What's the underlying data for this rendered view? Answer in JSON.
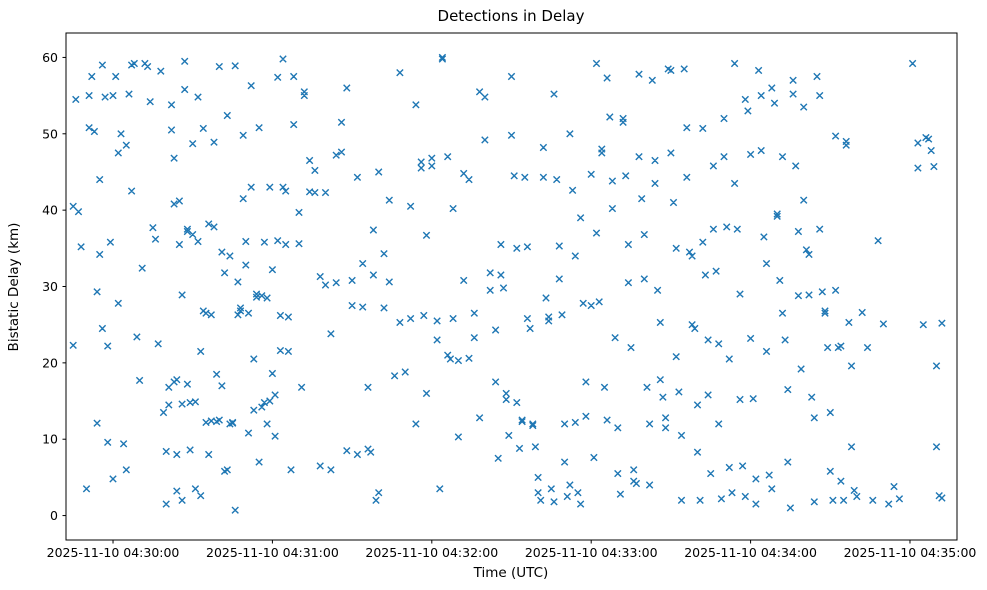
{
  "chart_data": {
    "type": "scatter",
    "title": "Detections in Delay",
    "xlabel": "Time (UTC)",
    "ylabel": "Bistatic Delay (km)",
    "marker": "x",
    "marker_color": "#1f77b4",
    "grid": false,
    "legend": "none",
    "x_unit": "seconds after 2025-11-10 04:30:00 UTC",
    "x_range": [
      -17.7,
      317.7
    ],
    "y_range": [
      -3.2,
      63.2
    ],
    "x_ticks": [
      {
        "value": 0,
        "label": "2025-11-10 04:30:00"
      },
      {
        "value": 60,
        "label": "2025-11-10 04:31:00"
      },
      {
        "value": 120,
        "label": "2025-11-10 04:32:00"
      },
      {
        "value": 180,
        "label": "2025-11-10 04:33:00"
      },
      {
        "value": 240,
        "label": "2025-11-10 04:34:00"
      },
      {
        "value": 300,
        "label": "2025-11-10 04:35:00"
      }
    ],
    "y_ticks": [
      0,
      10,
      20,
      30,
      40,
      50,
      60
    ],
    "points": [
      [
        -15,
        40.5
      ],
      [
        -15,
        22.3
      ],
      [
        -14,
        54.5
      ],
      [
        -13,
        39.8
      ],
      [
        -12,
        35.2
      ],
      [
        -10,
        3.5
      ],
      [
        -9,
        50.8
      ],
      [
        -9,
        55.0
      ],
      [
        -8,
        57.5
      ],
      [
        -7,
        50.3
      ],
      [
        -6,
        29.3
      ],
      [
        -6,
        12.1
      ],
      [
        -5,
        44.0
      ],
      [
        -5,
        34.2
      ],
      [
        -4,
        24.5
      ],
      [
        -4,
        59.0
      ],
      [
        -3,
        54.8
      ],
      [
        -2,
        22.2
      ],
      [
        -2,
        9.6
      ],
      [
        -1,
        35.8
      ],
      [
        0,
        55.0
      ],
      [
        0,
        4.8
      ],
      [
        1,
        57.5
      ],
      [
        2,
        47.5
      ],
      [
        2,
        27.8
      ],
      [
        3,
        50.0
      ],
      [
        4,
        9.4
      ],
      [
        5,
        48.5
      ],
      [
        5,
        6.0
      ],
      [
        6,
        55.2
      ],
      [
        7,
        42.5
      ],
      [
        7,
        59.0
      ],
      [
        8,
        59.2
      ],
      [
        9,
        23.4
      ],
      [
        10,
        17.7
      ],
      [
        11,
        32.4
      ],
      [
        12,
        59.2
      ],
      [
        13,
        58.8
      ],
      [
        14,
        54.2
      ],
      [
        15,
        37.7
      ],
      [
        16,
        36.2
      ],
      [
        17,
        22.5
      ],
      [
        18,
        58.2
      ],
      [
        19,
        13.5
      ],
      [
        20,
        8.4
      ],
      [
        20,
        1.5
      ],
      [
        21,
        16.8
      ],
      [
        21,
        14.5
      ],
      [
        22,
        53.8
      ],
      [
        22,
        50.5
      ],
      [
        23,
        40.8
      ],
      [
        23,
        46.8
      ],
      [
        23,
        17.5
      ],
      [
        24,
        17.8
      ],
      [
        24,
        8.0
      ],
      [
        24,
        3.2
      ],
      [
        25,
        41.2
      ],
      [
        25,
        35.5
      ],
      [
        26,
        28.9
      ],
      [
        26,
        14.6
      ],
      [
        26,
        2.0
      ],
      [
        27,
        59.5
      ],
      [
        27,
        55.8
      ],
      [
        28,
        37.5
      ],
      [
        28,
        37.2
      ],
      [
        28,
        17.2
      ],
      [
        29,
        14.8
      ],
      [
        29,
        8.6
      ],
      [
        30,
        48.7
      ],
      [
        30,
        36.8
      ],
      [
        31,
        14.9
      ],
      [
        31,
        3.5
      ],
      [
        32,
        54.8
      ],
      [
        32,
        35.9
      ],
      [
        33,
        21.5
      ],
      [
        33,
        2.6
      ],
      [
        34,
        50.7
      ],
      [
        34,
        26.8
      ],
      [
        35,
        26.5
      ],
      [
        35,
        12.2
      ],
      [
        36,
        8.0
      ],
      [
        36,
        38.2
      ],
      [
        37,
        26.3
      ],
      [
        37,
        12.4
      ],
      [
        38,
        48.9
      ],
      [
        38,
        37.8
      ],
      [
        39,
        18.5
      ],
      [
        39,
        12.3
      ],
      [
        40,
        12.5
      ],
      [
        40,
        58.8
      ],
      [
        41,
        34.5
      ],
      [
        41,
        17.0
      ],
      [
        42,
        31.8
      ],
      [
        42,
        5.8
      ],
      [
        43,
        6.0
      ],
      [
        43,
        52.4
      ],
      [
        44,
        34.0
      ],
      [
        44,
        12.0
      ],
      [
        45,
        12.1
      ],
      [
        45,
        12.2
      ],
      [
        46,
        0.7
      ],
      [
        46,
        58.9
      ],
      [
        47,
        30.6
      ],
      [
        47,
        26.3
      ],
      [
        48,
        26.8
      ],
      [
        48,
        27.2
      ],
      [
        49,
        49.8
      ],
      [
        49,
        41.5
      ],
      [
        50,
        35.9
      ],
      [
        50,
        32.8
      ],
      [
        51,
        26.5
      ],
      [
        51,
        10.8
      ],
      [
        52,
        56.3
      ],
      [
        52,
        43.0
      ],
      [
        53,
        20.5
      ],
      [
        53,
        13.8
      ],
      [
        54,
        29.0
      ],
      [
        54,
        28.6
      ],
      [
        55,
        7.0
      ],
      [
        55,
        50.8
      ],
      [
        56,
        28.8
      ],
      [
        56,
        14.2
      ],
      [
        57,
        14.8
      ],
      [
        57,
        35.8
      ],
      [
        58,
        28.5
      ],
      [
        58,
        12.0
      ],
      [
        59,
        15.0
      ],
      [
        59,
        43.0
      ],
      [
        60,
        32.2
      ],
      [
        60,
        18.6
      ],
      [
        61,
        15.8
      ],
      [
        61,
        10.4
      ],
      [
        62,
        57.4
      ],
      [
        62,
        36.0
      ],
      [
        63,
        26.2
      ],
      [
        63,
        21.6
      ],
      [
        64,
        59.8
      ],
      [
        64,
        43.0
      ],
      [
        65,
        42.5
      ],
      [
        65,
        35.5
      ],
      [
        66,
        26.0
      ],
      [
        66,
        21.5
      ],
      [
        67,
        6.0
      ],
      [
        68,
        57.5
      ],
      [
        68,
        51.2
      ],
      [
        70,
        39.7
      ],
      [
        70,
        35.6
      ],
      [
        71,
        16.8
      ],
      [
        72,
        55.5
      ],
      [
        72,
        55.0
      ],
      [
        74,
        46.5
      ],
      [
        74,
        42.4
      ],
      [
        76,
        45.2
      ],
      [
        76,
        42.3
      ],
      [
        78,
        31.3
      ],
      [
        78,
        6.5
      ],
      [
        80,
        42.3
      ],
      [
        80,
        30.2
      ],
      [
        82,
        23.8
      ],
      [
        82,
        6.0
      ],
      [
        84,
        47.2
      ],
      [
        84,
        30.5
      ],
      [
        86,
        47.6
      ],
      [
        86,
        51.5
      ],
      [
        88,
        8.5
      ],
      [
        88,
        56.0
      ],
      [
        90,
        30.8
      ],
      [
        90,
        27.5
      ],
      [
        92,
        8.0
      ],
      [
        92,
        44.3
      ],
      [
        94,
        33.0
      ],
      [
        94,
        27.3
      ],
      [
        96,
        16.8
      ],
      [
        96,
        8.7
      ],
      [
        97,
        8.3
      ],
      [
        98,
        37.4
      ],
      [
        98,
        31.5
      ],
      [
        99,
        2.0
      ],
      [
        100,
        3.0
      ],
      [
        100,
        45.0
      ],
      [
        102,
        34.3
      ],
      [
        102,
        27.2
      ],
      [
        104,
        41.3
      ],
      [
        104,
        30.6
      ],
      [
        106,
        18.3
      ],
      [
        108,
        58.0
      ],
      [
        108,
        25.3
      ],
      [
        110,
        18.8
      ],
      [
        112,
        40.5
      ],
      [
        112,
        25.8
      ],
      [
        114,
        12.0
      ],
      [
        114,
        53.8
      ],
      [
        116,
        46.3
      ],
      [
        116,
        45.5
      ],
      [
        117,
        26.2
      ],
      [
        118,
        36.7
      ],
      [
        118,
        16.0
      ],
      [
        120,
        46.8
      ],
      [
        120,
        45.8
      ],
      [
        122,
        25.5
      ],
      [
        122,
        23.0
      ],
      [
        123,
        3.5
      ],
      [
        124,
        60.0
      ],
      [
        124,
        59.8
      ],
      [
        126,
        47.0
      ],
      [
        126,
        21.0
      ],
      [
        127,
        20.5
      ],
      [
        128,
        40.2
      ],
      [
        128,
        25.8
      ],
      [
        130,
        20.3
      ],
      [
        130,
        10.3
      ],
      [
        132,
        44.8
      ],
      [
        132,
        30.8
      ],
      [
        134,
        20.6
      ],
      [
        134,
        44.0
      ],
      [
        136,
        26.5
      ],
      [
        136,
        23.3
      ],
      [
        138,
        12.8
      ],
      [
        138,
        55.5
      ],
      [
        140,
        54.8
      ],
      [
        140,
        49.2
      ],
      [
        142,
        31.8
      ],
      [
        142,
        29.5
      ],
      [
        144,
        24.3
      ],
      [
        144,
        17.5
      ],
      [
        145,
        7.5
      ],
      [
        146,
        35.5
      ],
      [
        146,
        31.5
      ],
      [
        147,
        29.8
      ],
      [
        148,
        16.0
      ],
      [
        148,
        15.2
      ],
      [
        149,
        10.5
      ],
      [
        150,
        57.5
      ],
      [
        150,
        49.8
      ],
      [
        151,
        44.5
      ],
      [
        152,
        35.0
      ],
      [
        152,
        14.8
      ],
      [
        153,
        8.8
      ],
      [
        154,
        12.5
      ],
      [
        154,
        12.3
      ],
      [
        155,
        44.3
      ],
      [
        156,
        35.2
      ],
      [
        156,
        25.8
      ],
      [
        157,
        24.5
      ],
      [
        158,
        12.0
      ],
      [
        158,
        11.8
      ],
      [
        159,
        9.0
      ],
      [
        160,
        5.0
      ],
      [
        160,
        3.0
      ],
      [
        161,
        2.0
      ],
      [
        162,
        48.2
      ],
      [
        162,
        44.3
      ],
      [
        163,
        28.5
      ],
      [
        164,
        26.0
      ],
      [
        164,
        25.5
      ],
      [
        165,
        3.5
      ],
      [
        166,
        1.8
      ],
      [
        166,
        55.2
      ],
      [
        167,
        44.0
      ],
      [
        168,
        35.3
      ],
      [
        168,
        31.0
      ],
      [
        169,
        26.3
      ],
      [
        170,
        12.0
      ],
      [
        170,
        7.0
      ],
      [
        171,
        2.5
      ],
      [
        172,
        4.0
      ],
      [
        172,
        50.0
      ],
      [
        173,
        42.6
      ],
      [
        174,
        34.0
      ],
      [
        174,
        12.2
      ],
      [
        175,
        3.0
      ],
      [
        176,
        1.5
      ],
      [
        176,
        39.0
      ],
      [
        177,
        27.8
      ],
      [
        178,
        17.5
      ],
      [
        178,
        13.0
      ],
      [
        180,
        44.7
      ],
      [
        180,
        27.5
      ],
      [
        181,
        7.6
      ],
      [
        182,
        59.2
      ],
      [
        182,
        37.0
      ],
      [
        183,
        28.0
      ],
      [
        184,
        48.0
      ],
      [
        184,
        47.5
      ],
      [
        185,
        16.8
      ],
      [
        186,
        12.5
      ],
      [
        186,
        57.3
      ],
      [
        187,
        52.2
      ],
      [
        188,
        43.8
      ],
      [
        188,
        40.2
      ],
      [
        189,
        23.3
      ],
      [
        190,
        11.5
      ],
      [
        190,
        5.5
      ],
      [
        191,
        2.8
      ],
      [
        192,
        52.0
      ],
      [
        192,
        51.5
      ],
      [
        193,
        44.5
      ],
      [
        194,
        35.5
      ],
      [
        194,
        30.5
      ],
      [
        195,
        22.0
      ],
      [
        196,
        6.0
      ],
      [
        196,
        4.5
      ],
      [
        197,
        4.2
      ],
      [
        198,
        57.8
      ],
      [
        198,
        47.0
      ],
      [
        199,
        41.5
      ],
      [
        200,
        36.8
      ],
      [
        200,
        31.0
      ],
      [
        201,
        16.8
      ],
      [
        202,
        12.0
      ],
      [
        202,
        4.0
      ],
      [
        203,
        57.0
      ],
      [
        204,
        46.5
      ],
      [
        204,
        43.5
      ],
      [
        205,
        29.5
      ],
      [
        206,
        25.3
      ],
      [
        206,
        17.8
      ],
      [
        207,
        15.5
      ],
      [
        208,
        12.8
      ],
      [
        208,
        11.5
      ],
      [
        209,
        58.5
      ],
      [
        210,
        58.3
      ],
      [
        210,
        47.5
      ],
      [
        211,
        41.0
      ],
      [
        212,
        35.0
      ],
      [
        212,
        20.8
      ],
      [
        213,
        16.2
      ],
      [
        214,
        10.5
      ],
      [
        214,
        2.0
      ],
      [
        215,
        58.5
      ],
      [
        216,
        50.8
      ],
      [
        216,
        44.3
      ],
      [
        217,
        34.5
      ],
      [
        218,
        34.0
      ],
      [
        218,
        25.0
      ],
      [
        219,
        24.5
      ],
      [
        220,
        14.5
      ],
      [
        220,
        8.3
      ],
      [
        221,
        2.0
      ],
      [
        222,
        50.7
      ],
      [
        222,
        35.8
      ],
      [
        223,
        31.5
      ],
      [
        224,
        23.0
      ],
      [
        224,
        15.8
      ],
      [
        225,
        5.5
      ],
      [
        226,
        45.8
      ],
      [
        226,
        37.5
      ],
      [
        227,
        32.0
      ],
      [
        228,
        22.5
      ],
      [
        228,
        12.0
      ],
      [
        229,
        2.2
      ],
      [
        230,
        52.0
      ],
      [
        230,
        47.0
      ],
      [
        231,
        37.8
      ],
      [
        232,
        20.5
      ],
      [
        232,
        6.3
      ],
      [
        233,
        3.0
      ],
      [
        234,
        59.2
      ],
      [
        234,
        43.5
      ],
      [
        235,
        37.5
      ],
      [
        236,
        29.0
      ],
      [
        236,
        15.2
      ],
      [
        237,
        6.5
      ],
      [
        238,
        2.5
      ],
      [
        238,
        54.5
      ],
      [
        239,
        53.0
      ],
      [
        240,
        47.3
      ],
      [
        240,
        23.2
      ],
      [
        241,
        15.3
      ],
      [
        242,
        4.8
      ],
      [
        242,
        1.5
      ],
      [
        243,
        58.3
      ],
      [
        244,
        55.0
      ],
      [
        244,
        47.8
      ],
      [
        245,
        36.5
      ],
      [
        246,
        33.0
      ],
      [
        246,
        21.5
      ],
      [
        247,
        5.3
      ],
      [
        248,
        3.5
      ],
      [
        248,
        56.0
      ],
      [
        249,
        54.0
      ],
      [
        250,
        39.5
      ],
      [
        250,
        39.2
      ],
      [
        251,
        30.8
      ],
      [
        252,
        26.5
      ],
      [
        252,
        47.0
      ],
      [
        253,
        23.0
      ],
      [
        254,
        16.5
      ],
      [
        254,
        7.0
      ],
      [
        255,
        1.0
      ],
      [
        256,
        57.0
      ],
      [
        256,
        55.2
      ],
      [
        257,
        45.8
      ],
      [
        258,
        37.2
      ],
      [
        258,
        28.8
      ],
      [
        259,
        19.2
      ],
      [
        260,
        53.5
      ],
      [
        260,
        41.3
      ],
      [
        261,
        34.8
      ],
      [
        262,
        34.2
      ],
      [
        262,
        28.9
      ],
      [
        263,
        15.5
      ],
      [
        264,
        12.8
      ],
      [
        264,
        1.8
      ],
      [
        265,
        57.5
      ],
      [
        266,
        55.0
      ],
      [
        266,
        37.5
      ],
      [
        267,
        29.3
      ],
      [
        268,
        26.8
      ],
      [
        268,
        26.5
      ],
      [
        269,
        22.0
      ],
      [
        270,
        13.5
      ],
      [
        270,
        5.8
      ],
      [
        271,
        2.0
      ],
      [
        272,
        49.7
      ],
      [
        272,
        29.5
      ],
      [
        273,
        22.0
      ],
      [
        274,
        22.2
      ],
      [
        274,
        4.5
      ],
      [
        275,
        2.0
      ],
      [
        276,
        49.0
      ],
      [
        276,
        48.5
      ],
      [
        277,
        25.3
      ],
      [
        278,
        19.6
      ],
      [
        278,
        9.0
      ],
      [
        279,
        3.3
      ],
      [
        280,
        2.5
      ],
      [
        282,
        26.6
      ],
      [
        284,
        22.0
      ],
      [
        286,
        2.0
      ],
      [
        288,
        36.0
      ],
      [
        290,
        25.1
      ],
      [
        292,
        1.5
      ],
      [
        294,
        3.8
      ],
      [
        296,
        2.2
      ],
      [
        301,
        59.2
      ],
      [
        303,
        48.8
      ],
      [
        303,
        45.5
      ],
      [
        305,
        25.0
      ],
      [
        306,
        49.5
      ],
      [
        307,
        49.3
      ],
      [
        308,
        47.8
      ],
      [
        309,
        45.7
      ],
      [
        310,
        19.6
      ],
      [
        310,
        9.0
      ],
      [
        311,
        2.6
      ],
      [
        312,
        2.3
      ],
      [
        312,
        25.2
      ]
    ]
  }
}
